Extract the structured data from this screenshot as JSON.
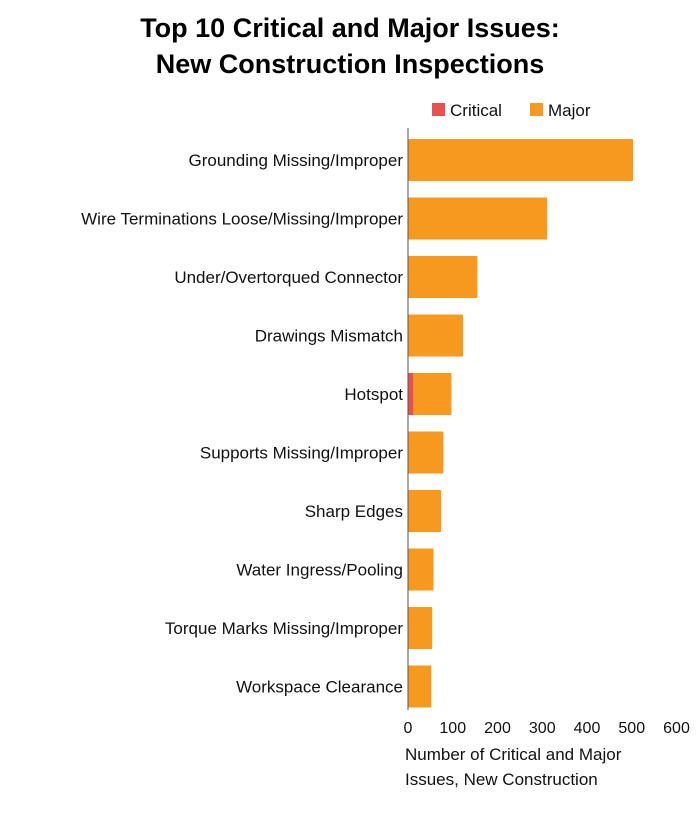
{
  "chart_data": {
    "type": "bar",
    "orientation": "horizontal",
    "stacked": true,
    "title": [
      "Top 10 Critical and Major Issues:",
      "New Construction Inspections"
    ],
    "xlabel": [
      "Number of Critical and Major",
      "Issues, New Construction"
    ],
    "ylabel": "",
    "xlim": [
      0,
      600
    ],
    "xticks": [
      "0",
      "100",
      "200",
      "300",
      "400",
      "500",
      "600"
    ],
    "grid": false,
    "legend_placement": "top",
    "categories": [
      "Grounding Missing/Improper",
      "Wire Terminations Loose/Missing/Improper",
      "Under/Overtorqued Connector",
      "Drawings Mismatch",
      "Hotspot",
      "Supports Missing/Improper",
      "Sharp Edges",
      "Water Ingress/Pooling",
      "Torque Marks Missing/Improper",
      "Workspace Clearance"
    ],
    "series": [
      {
        "name": "Critical",
        "color": "#e8514f",
        "values": [
          0,
          0,
          0,
          0,
          12,
          0,
          0,
          0,
          0,
          0
        ]
      },
      {
        "name": "Major",
        "color": "#f7991f",
        "values": [
          503,
          311,
          155,
          123,
          85,
          79,
          74,
          57,
          54,
          52
        ]
      }
    ]
  }
}
